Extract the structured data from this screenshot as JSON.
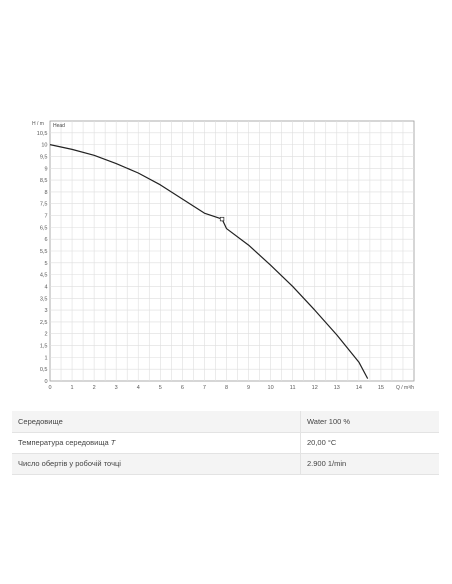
{
  "chart_data": {
    "type": "line",
    "title": "",
    "xlabel": "Q / m³/h",
    "ylabel": "H / m",
    "xlim": [
      0,
      16.5
    ],
    "ylim": [
      0,
      11
    ],
    "grid": true,
    "legend": "none",
    "x_ticks": [
      0,
      1,
      2,
      3,
      4,
      5,
      6,
      7,
      8,
      9,
      10,
      11,
      12,
      13,
      14,
      15
    ],
    "y_ticks": [
      0,
      0.5,
      1,
      1.5,
      2,
      2.5,
      3,
      3.5,
      4,
      4.5,
      5,
      5.5,
      6,
      6.5,
      7,
      7.5,
      8,
      8.5,
      9,
      9.5,
      10,
      10.5
    ],
    "series": [
      {
        "name": "Head",
        "color": "#222222",
        "x": [
          0,
          1,
          2,
          3,
          4,
          5,
          6,
          7,
          7.8,
          8,
          9,
          10,
          11,
          12,
          13,
          14,
          14.4
        ],
        "y": [
          10.0,
          9.8,
          9.55,
          9.2,
          8.8,
          8.3,
          7.7,
          7.1,
          6.85,
          6.45,
          5.75,
          4.9,
          4.0,
          3.0,
          1.95,
          0.8,
          0.1
        ]
      }
    ],
    "duty_point": {
      "x": 7.8,
      "y": 6.85
    }
  },
  "properties": [
    {
      "label": "Середовище",
      "value": "Water 100 %"
    },
    {
      "label": "Температура середовища",
      "symbol": "T",
      "value": "20,00 °C"
    },
    {
      "label": "Число обертів у робочій точці",
      "value": "2.900 1/min"
    }
  ]
}
